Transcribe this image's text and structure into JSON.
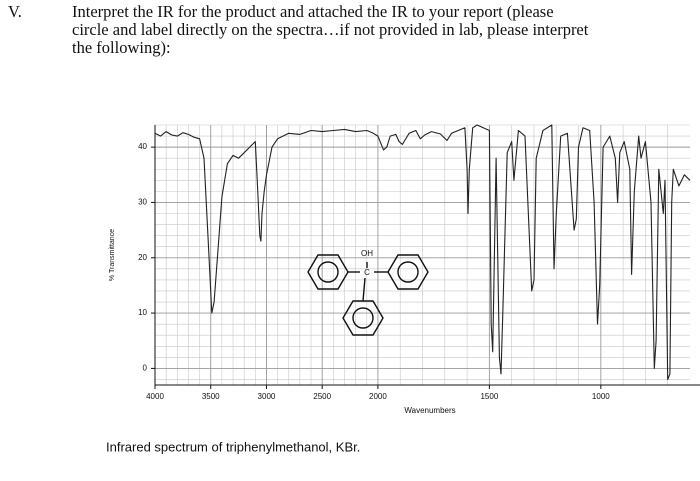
{
  "question": {
    "number": "V.",
    "lines": [
      "Interpret the IR for the product and attached the IR to your report (please",
      "circle and label directly on the spectra…if not provided in lab, please interpret",
      "the following):"
    ]
  },
  "molecule": {
    "oh": "OH",
    "c": "C"
  },
  "caption": "Infrared spectrum of triphenylmethanol, KBr.",
  "chart_data": {
    "type": "line",
    "x_label": "Wavenumbers",
    "y_label": "% Transmittance",
    "xlim": [
      4000,
      600
    ],
    "ylim": [
      -3,
      44
    ],
    "x_scale_change": {
      "at": 2000,
      "factor": 2
    },
    "xticks": [
      4000,
      3500,
      3000,
      2500,
      2000,
      1500,
      1000
    ],
    "yticks": [
      0,
      10,
      20,
      30,
      40
    ],
    "xgrid": [
      3900,
      3800,
      3700,
      3600,
      3400,
      3300,
      3200,
      3100,
      2900,
      2800,
      2700,
      2600,
      2400,
      2300,
      2200,
      2100,
      1900,
      1800,
      1700,
      1600,
      1400,
      1300,
      1200,
      1100,
      900,
      800,
      700
    ],
    "ygrid": [
      -2,
      2,
      4,
      6,
      8,
      12,
      14,
      16,
      18,
      22,
      24,
      26,
      28,
      32,
      34,
      36,
      38,
      42,
      44
    ],
    "grid": true,
    "series": [
      {
        "name": "triphenylmethanol",
        "color": "#222222",
        "x": [
          4000,
          3950,
          3900,
          3850,
          3800,
          3750,
          3700,
          3650,
          3600,
          3560,
          3520,
          3490,
          3470,
          3440,
          3400,
          3350,
          3300,
          3250,
          3200,
          3150,
          3100,
          3080,
          3060,
          3050,
          3040,
          3020,
          3000,
          2950,
          2900,
          2800,
          2700,
          2600,
          2500,
          2400,
          2300,
          2200,
          2100,
          2050,
          2000,
          1975,
          1960,
          1945,
          1920,
          1905,
          1890,
          1860,
          1830,
          1810,
          1790,
          1760,
          1720,
          1690,
          1670,
          1640,
          1610,
          1600,
          1596,
          1590,
          1575,
          1555,
          1500,
          1492,
          1485,
          1470,
          1455,
          1448,
          1440,
          1420,
          1400,
          1390,
          1370,
          1340,
          1310,
          1300,
          1290,
          1260,
          1220,
          1210,
          1200,
          1180,
          1150,
          1120,
          1110,
          1100,
          1080,
          1050,
          1030,
          1015,
          1005,
          990,
          960,
          935,
          925,
          915,
          895,
          870,
          862,
          850,
          830,
          820,
          800,
          775,
          760,
          752,
          740,
          720,
          712,
          700,
          690,
          682,
          675,
          650,
          625,
          600
        ],
        "values": [
          42.5,
          42,
          42.8,
          42.2,
          42,
          42.6,
          42.3,
          41.8,
          41.5,
          38,
          22,
          10,
          12,
          20,
          31,
          37,
          38.5,
          38,
          39,
          40,
          41,
          33,
          24,
          23,
          28,
          32,
          35,
          40,
          41.5,
          42.5,
          42.3,
          43,
          42.8,
          43,
          43.2,
          42.8,
          43,
          42.6,
          42,
          39.5,
          40,
          42,
          42.3,
          41,
          40.5,
          42.5,
          43,
          41.5,
          42.2,
          42.8,
          42.4,
          41.2,
          42.5,
          43,
          43.5,
          36,
          28,
          36,
          43.5,
          44,
          43,
          8,
          3,
          38,
          2,
          -1,
          10,
          39,
          41,
          34,
          43,
          42,
          14,
          16,
          38,
          43,
          44,
          18,
          28,
          42,
          42.5,
          25,
          27,
          40,
          43.5,
          43,
          30,
          8,
          15,
          40,
          42,
          38,
          30,
          39,
          41,
          36,
          17,
          32,
          42,
          38,
          41,
          30,
          0,
          5,
          36,
          28,
          34,
          -2,
          -1,
          30,
          36,
          33,
          35,
          34
        ]
      }
    ]
  }
}
